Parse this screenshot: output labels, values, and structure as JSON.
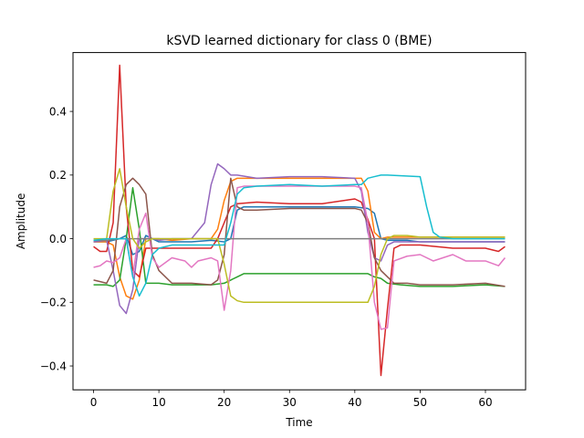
{
  "chart_data": {
    "type": "line",
    "title": "kSVD learned dictionary for class 0 (BME)",
    "xlabel": "Time",
    "ylabel": "Amplitude",
    "xlim": [
      -3.15,
      66.15
    ],
    "ylim": [
      -0.475,
      0.585
    ],
    "xticks": [
      0,
      10,
      20,
      30,
      40,
      50,
      60
    ],
    "yticks": [
      -0.4,
      -0.2,
      0.0,
      0.2,
      0.4
    ],
    "ytick_labels": [
      "−0.4",
      "−0.2",
      "0.0",
      "0.2",
      "0.4"
    ],
    "grid": false,
    "series": [
      {
        "color": "#1f77b4",
        "x": [
          0,
          2,
          4,
          5,
          6,
          7,
          8,
          9,
          10,
          12,
          15,
          18,
          20,
          21,
          22,
          23,
          25,
          30,
          35,
          40,
          42,
          43,
          44,
          45,
          46,
          48,
          50,
          55,
          60,
          63
        ],
        "y": [
          -0.01,
          -0.01,
          0.0,
          0.01,
          -0.05,
          -0.04,
          0.01,
          0.0,
          -0.01,
          -0.01,
          -0.01,
          -0.005,
          -0.01,
          0.0,
          0.09,
          0.1,
          0.1,
          0.1,
          0.1,
          0.1,
          0.095,
          0.08,
          0.0,
          -0.005,
          -0.005,
          -0.005,
          -0.01,
          -0.01,
          -0.01,
          -0.01
        ]
      },
      {
        "color": "#ff7f0e",
        "x": [
          0,
          2,
          3,
          4,
          5,
          6,
          7,
          8,
          9,
          10,
          12,
          15,
          18,
          19,
          20,
          21,
          22,
          23,
          25,
          30,
          35,
          40,
          41,
          42,
          43,
          44,
          45,
          46,
          48,
          50,
          55,
          60,
          63
        ],
        "y": [
          -0.01,
          -0.01,
          -0.02,
          -0.12,
          -0.18,
          -0.19,
          -0.13,
          0.0,
          0.0,
          0.0,
          -0.005,
          0.0,
          0.0,
          0.03,
          0.12,
          0.18,
          0.19,
          0.19,
          0.19,
          0.19,
          0.19,
          0.19,
          0.19,
          0.15,
          0.02,
          0.0,
          0.005,
          0.005,
          0.005,
          0.005,
          0.005,
          0.005,
          0.005
        ]
      },
      {
        "color": "#2ca02c",
        "x": [
          0,
          2,
          3,
          4,
          5,
          6,
          7,
          8,
          9,
          10,
          12,
          15,
          18,
          20,
          21,
          22,
          23,
          25,
          30,
          35,
          40,
          42,
          43,
          44,
          45,
          47,
          50,
          55,
          60,
          63
        ],
        "y": [
          -0.145,
          -0.145,
          -0.15,
          -0.13,
          0.0,
          0.16,
          0.03,
          -0.14,
          -0.14,
          -0.14,
          -0.145,
          -0.145,
          -0.145,
          -0.14,
          -0.13,
          -0.12,
          -0.11,
          -0.11,
          -0.11,
          -0.11,
          -0.11,
          -0.11,
          -0.12,
          -0.125,
          -0.14,
          -0.145,
          -0.15,
          -0.15,
          -0.145,
          -0.15
        ]
      },
      {
        "color": "#d62728",
        "x": [
          0,
          1,
          2,
          3,
          4,
          5,
          6,
          7,
          8,
          9,
          10,
          12,
          15,
          18,
          19,
          20,
          21,
          22,
          25,
          30,
          35,
          40,
          41,
          42,
          43,
          44,
          45,
          46,
          47,
          50,
          55,
          60,
          62,
          63
        ],
        "y": [
          -0.025,
          -0.04,
          -0.04,
          0.05,
          0.545,
          0.1,
          -0.1,
          -0.12,
          -0.03,
          -0.03,
          -0.03,
          -0.03,
          -0.03,
          -0.03,
          0.0,
          0.05,
          0.1,
          0.11,
          0.115,
          0.11,
          0.11,
          0.125,
          0.115,
          0.06,
          0.0,
          -0.43,
          -0.22,
          -0.03,
          -0.02,
          -0.02,
          -0.03,
          -0.03,
          -0.04,
          -0.025
        ]
      },
      {
        "color": "#9467bd",
        "x": [
          0,
          2,
          3,
          4,
          5,
          6,
          7,
          8,
          9,
          10,
          12,
          15,
          17,
          18,
          19,
          20,
          21,
          22,
          25,
          30,
          35,
          40,
          41,
          42,
          43,
          44,
          45,
          46,
          48,
          50,
          55,
          60,
          63
        ],
        "y": [
          -0.01,
          -0.005,
          -0.1,
          -0.21,
          -0.235,
          -0.16,
          0.0,
          0.0,
          0.0,
          -0.005,
          0.0,
          0.0,
          0.05,
          0.17,
          0.235,
          0.22,
          0.2,
          0.2,
          0.19,
          0.195,
          0.195,
          0.19,
          0.15,
          0.02,
          -0.06,
          -0.07,
          -0.02,
          -0.01,
          -0.01,
          -0.01,
          -0.01,
          -0.01,
          -0.01
        ]
      },
      {
        "color": "#8c564b",
        "x": [
          0,
          2,
          3,
          4,
          5,
          6,
          7,
          8,
          9,
          10,
          12,
          15,
          18,
          19,
          20,
          21,
          22,
          23,
          25,
          30,
          35,
          40,
          41,
          42,
          43,
          44,
          45,
          46,
          48,
          50,
          55,
          60,
          63
        ],
        "y": [
          -0.13,
          -0.14,
          -0.1,
          0.1,
          0.17,
          0.19,
          0.17,
          0.14,
          -0.05,
          -0.1,
          -0.14,
          -0.14,
          -0.145,
          -0.13,
          -0.05,
          0.19,
          0.1,
          0.09,
          0.09,
          0.095,
          0.095,
          0.095,
          0.09,
          0.05,
          -0.06,
          -0.1,
          -0.12,
          -0.14,
          -0.14,
          -0.145,
          -0.145,
          -0.14,
          -0.15
        ]
      },
      {
        "color": "#e377c2",
        "x": [
          0,
          1,
          2,
          3,
          4,
          5,
          6,
          7,
          8,
          9,
          10,
          12,
          14,
          15,
          16,
          18,
          19,
          20,
          21,
          22,
          23,
          25,
          30,
          35,
          40,
          41,
          42,
          43,
          44,
          45,
          46,
          48,
          50,
          52,
          55,
          57,
          60,
          62,
          63
        ],
        "y": [
          -0.09,
          -0.085,
          -0.07,
          -0.075,
          -0.06,
          0.0,
          -0.12,
          0.03,
          0.08,
          -0.06,
          -0.09,
          -0.06,
          -0.07,
          -0.09,
          -0.07,
          -0.06,
          -0.07,
          -0.225,
          -0.1,
          0.16,
          0.165,
          0.165,
          0.165,
          0.165,
          0.165,
          0.16,
          0.05,
          -0.2,
          -0.285,
          -0.28,
          -0.07,
          -0.055,
          -0.05,
          -0.07,
          -0.05,
          -0.07,
          -0.07,
          -0.085,
          -0.06
        ]
      },
      {
        "color": "#7f7f7f",
        "x": [
          0,
          2,
          4,
          6,
          8,
          10,
          12,
          15,
          18,
          20,
          22,
          25,
          30,
          35,
          40,
          42,
          44,
          46,
          48,
          50,
          55,
          60,
          63
        ],
        "y": [
          -0.005,
          -0.005,
          0.0,
          0.0,
          0.0,
          0.0,
          0.0,
          0.0,
          0.0,
          0.0,
          0.0,
          0.0,
          0.0,
          0.0,
          0.0,
          0.0,
          0.0,
          0.0,
          0.0,
          0.0,
          0.0,
          0.0,
          0.0
        ]
      },
      {
        "color": "#bcbd22",
        "x": [
          0,
          2,
          3,
          4,
          5,
          6,
          7,
          8,
          9,
          10,
          12,
          15,
          18,
          19,
          20,
          21,
          22,
          23,
          25,
          30,
          35,
          40,
          41,
          42,
          43,
          44,
          45,
          46,
          48,
          50,
          55,
          60,
          63
        ],
        "y": [
          0.0,
          0.0,
          0.15,
          0.22,
          0.1,
          0.0,
          -0.03,
          -0.01,
          0.0,
          0.0,
          0.0,
          0.0,
          0.0,
          0.0,
          -0.08,
          -0.18,
          -0.195,
          -0.2,
          -0.2,
          -0.2,
          -0.2,
          -0.2,
          -0.2,
          -0.2,
          -0.15,
          -0.05,
          0.0,
          0.01,
          0.01,
          0.005,
          0.005,
          0.005,
          0.005
        ]
      },
      {
        "color": "#17becf",
        "x": [
          0,
          2,
          4,
          5,
          6,
          7,
          8,
          9,
          10,
          12,
          15,
          18,
          20,
          21,
          22,
          23,
          25,
          30,
          35,
          40,
          41,
          42,
          43,
          44,
          45,
          50,
          51,
          52,
          53,
          55,
          60,
          63
        ],
        "y": [
          -0.005,
          0.0,
          0.0,
          0.0,
          -0.12,
          -0.18,
          -0.14,
          -0.05,
          -0.03,
          -0.02,
          -0.02,
          -0.02,
          -0.02,
          0.05,
          0.14,
          0.16,
          0.165,
          0.17,
          0.165,
          0.17,
          0.17,
          0.19,
          0.195,
          0.2,
          0.2,
          0.195,
          0.1,
          0.02,
          0.005,
          0.0,
          0.0,
          0.0
        ]
      }
    ]
  }
}
